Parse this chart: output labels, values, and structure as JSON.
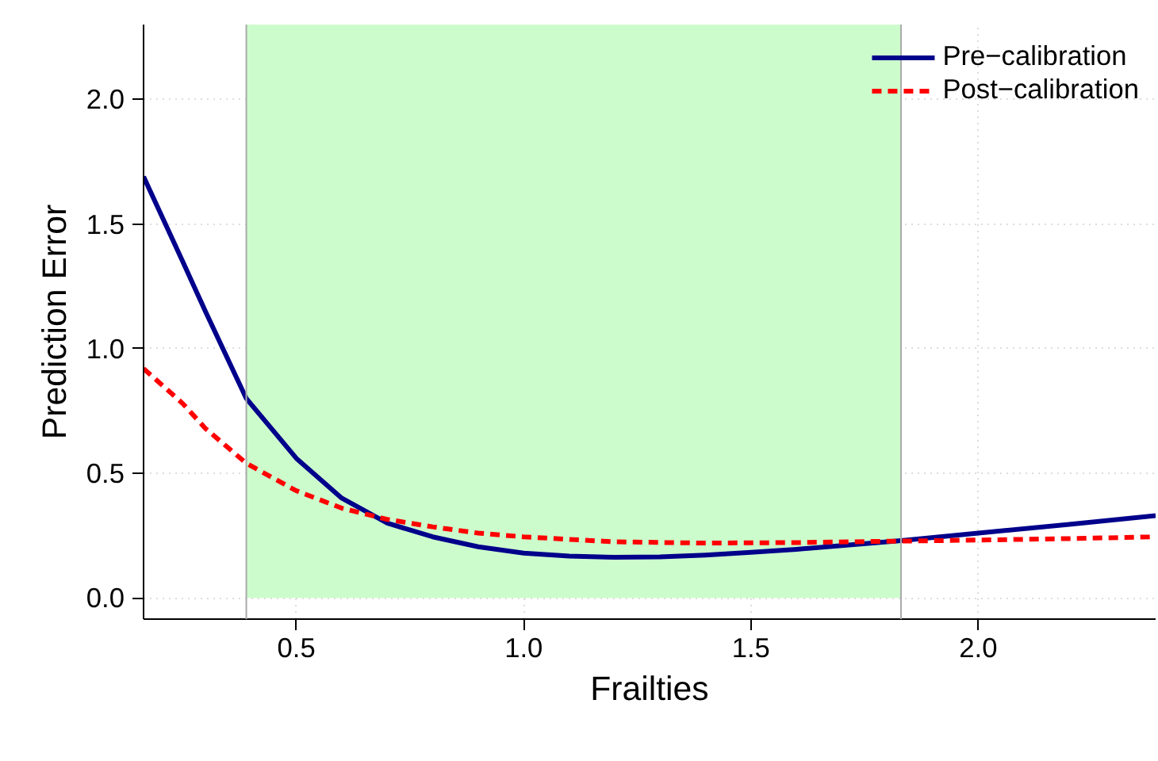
{
  "chart_data": {
    "type": "line",
    "xlabel": "Frailties",
    "ylabel": "Prediction Error",
    "xlim": [
      0.164,
      2.39
    ],
    "ylim": [
      -0.085,
      2.3
    ],
    "xticks": [
      0.5,
      {
        "value": 1,
        "label": "1.0"
      },
      1.5,
      {
        "value": 2,
        "label": "2.0"
      }
    ],
    "yticks": [
      {
        "value": 0,
        "label": "0.0"
      },
      0.5,
      {
        "value": 1,
        "label": "1.0"
      },
      1.5,
      {
        "value": 2,
        "label": "2.0"
      }
    ],
    "grid": true,
    "legend": "top right",
    "bands": [
      {
        "axis": "x",
        "from": 0.39,
        "to": 1.83,
        "color": "#ccfccc"
      }
    ],
    "ref_lines": [
      {
        "axis": "x",
        "value": 0.39,
        "color": "#aaaaaa"
      },
      {
        "axis": "x",
        "value": 1.83,
        "color": "#aaaaaa"
      }
    ],
    "series": [
      {
        "name": "Pre−calibration",
        "color": "#00008b",
        "line_style": "solid",
        "x": [
          0.164,
          0.25,
          0.3,
          0.39,
          0.5,
          0.6,
          0.7,
          0.8,
          0.9,
          1.0,
          1.1,
          1.2,
          1.3,
          1.4,
          1.5,
          1.6,
          1.7,
          1.83,
          2.0,
          2.2,
          2.39
        ],
        "values": [
          1.69,
          1.35,
          1.15,
          0.8,
          0.56,
          0.4,
          0.3,
          0.245,
          0.205,
          0.18,
          0.168,
          0.163,
          0.165,
          0.172,
          0.183,
          0.195,
          0.21,
          0.23,
          0.26,
          0.295,
          0.33
        ]
      },
      {
        "name": "Post−calibration",
        "color": "#ff0000",
        "line_style": "dashed",
        "x": [
          0.164,
          0.25,
          0.3,
          0.39,
          0.5,
          0.6,
          0.7,
          0.8,
          0.9,
          1.0,
          1.2,
          1.4,
          1.6,
          1.83,
          2.0,
          2.2,
          2.39
        ],
        "values": [
          0.92,
          0.78,
          0.68,
          0.54,
          0.43,
          0.36,
          0.315,
          0.285,
          0.26,
          0.245,
          0.225,
          0.22,
          0.222,
          0.228,
          0.232,
          0.238,
          0.245
        ]
      }
    ]
  }
}
